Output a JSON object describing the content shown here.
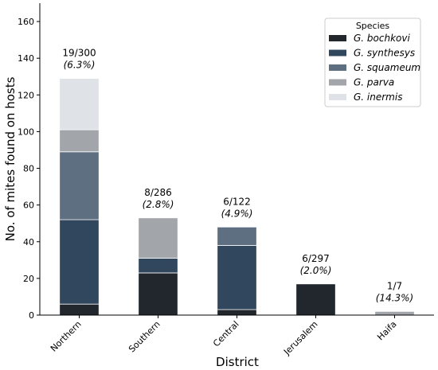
{
  "chart_data": {
    "type": "bar",
    "stacked": true,
    "categories": [
      "Northern",
      "Southern",
      "Central",
      "Jerusalem",
      "Haifa"
    ],
    "series": [
      {
        "name": "G.  bochkovi",
        "color": "#22272e",
        "values": [
          6,
          23,
          3,
          17,
          0
        ]
      },
      {
        "name": "G.  synthesys",
        "color": "#31475e",
        "values": [
          46,
          8,
          35,
          0,
          0
        ]
      },
      {
        "name": "G.  squameum",
        "color": "#5f6f82",
        "values": [
          37,
          0,
          10,
          0,
          0
        ]
      },
      {
        "name": "G.  parva",
        "color": "#a2a6aa",
        "values": [
          12,
          22,
          0,
          0,
          2
        ]
      },
      {
        "name": "G.  inermis",
        "color": "#dfe2e6",
        "values": [
          28,
          0,
          0,
          0,
          0
        ]
      }
    ],
    "annotations": [
      {
        "count": "19/300",
        "pct": "(6.3%)"
      },
      {
        "count": "8/286",
        "pct": "(2.8%)"
      },
      {
        "count": "6/122",
        "pct": "(4.9%)"
      },
      {
        "count": "6/297",
        "pct": "(2.0%)"
      },
      {
        "count": "1/7",
        "pct": "(14.3%)"
      }
    ],
    "xlabel": "District",
    "ylabel": "No. of mites found on hosts",
    "ylim": [
      0,
      170
    ],
    "yticks": [
      0,
      20,
      40,
      60,
      80,
      100,
      120,
      140,
      160
    ],
    "legend": {
      "title": "Species",
      "position": "top-right"
    },
    "grid": false
  }
}
